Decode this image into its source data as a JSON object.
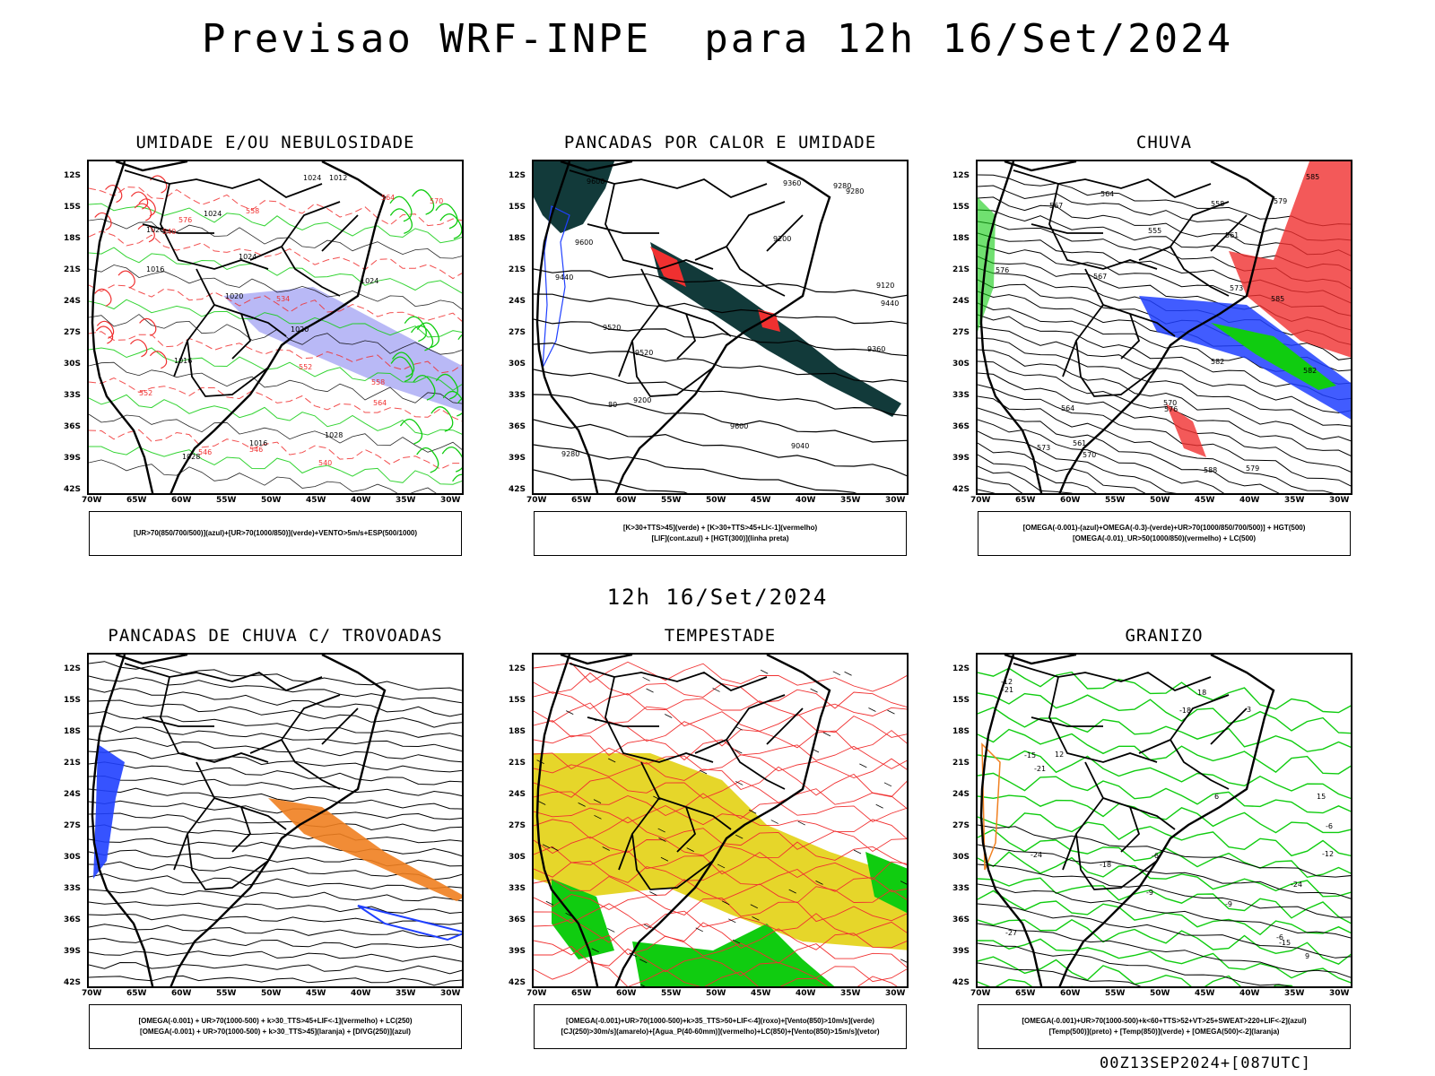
{
  "title": "Previsao WRF-INPE  para 12h 16/Set/2024",
  "mid_title": "12h 16/Set/2024",
  "footer": "00Z13SEP2024+[087UTC]",
  "lat_labels": [
    "12S",
    "15S",
    "18S",
    "21S",
    "24S",
    "27S",
    "30S",
    "33S",
    "36S",
    "39S",
    "42S"
  ],
  "lon_labels": [
    "70W",
    "65W",
    "60W",
    "55W",
    "50W",
    "45W",
    "40W",
    "35W",
    "30W"
  ],
  "colors": {
    "red": "#f03030",
    "green": "#10cc10",
    "blue": "#2040ff",
    "purple": "#8080ee",
    "teal": "#123a3a",
    "yellow": "#e6d62a",
    "orange": "#f08020"
  },
  "panels": [
    {
      "title": "UMIDADE E/OU NEBULOSIDADE",
      "legend": [
        "[UR>70(850/700/500)](azul)+[UR>70(1000/850)](verde)+VENTO>5m/s+ESP(500/1000)"
      ],
      "contour_labels": [
        "1012",
        "1016",
        "1016",
        "1016",
        "1020",
        "1024",
        "1024",
        "1020",
        "1024",
        "1024",
        "1028",
        "1020",
        "1028",
        "576",
        "570",
        "564",
        "558",
        "552",
        "546",
        "540",
        "534",
        "564",
        "558",
        "552",
        "546",
        "540"
      ]
    },
    {
      "title": "PANCADAS POR CALOR E UMIDADE",
      "legend": [
        "[K>30+TTS>45](verde) + [K>30+TTS>45+LI<-1](vermelho)",
        "[LIF](cont.azul) + [HGT(300)](linha preta)"
      ],
      "contour_labels": [
        "9600",
        "9520",
        "9440",
        "9360",
        "9280",
        "9200",
        "9120",
        "9040",
        "9600",
        "9520",
        "9440",
        "9360",
        "9280",
        "9280",
        "9200",
        "9600",
        "80"
      ]
    },
    {
      "title": "CHUVA",
      "legend": [
        "[OMEGA(-0.001)-(azul)+OMEGA(-0.3)-(verde)+UR>70(1000/850/700/500)] + HGT(500)",
        "[OMEGA(-0.01)_UR>50(1000/850)(vermelho) + LC(500)"
      ],
      "contour_labels": [
        "585",
        "582",
        "579",
        "576",
        "573",
        "570",
        "567",
        "564",
        "561",
        "588",
        "585",
        "582",
        "579",
        "576",
        "573",
        "570",
        "567",
        "564",
        "561",
        "558",
        "555"
      ]
    },
    {
      "title": "PANCADAS DE CHUVA C/ TROVOADAS",
      "legend": [
        "[OMEGA(-0.001) + UR>70(1000-500) + k>30_TTS>45+LIF<-1](vermelho) + LC(250)",
        "[OMEGA(-0.001) + UR>70(1000-500) + k>30_TTS>45](laranja) + [DIVG(250)](azul)"
      ],
      "contour_labels": []
    },
    {
      "title": "TEMPESTADE",
      "legend": [
        "[OMEGA(-0.001)+UR>70(1000-500)+k>35_TTS>50+LIF<-4](roxo)+[Vento(850)>10m/s](verde)",
        "[CJ(250)>30m/s](amarelo)+[Agua_P(40-60mm)](vermelho)+LC(850)+[Vento(850)>15m/s](vetor)"
      ],
      "contour_labels": []
    },
    {
      "title": "GRANIZO",
      "legend": [
        "[OMEGA(-0.001)+UR>70(1000-500)+k<60+TTS>52+VT>25+SWEAT>220+LIF<-2](azul)",
        "[Temp(500)](preto) + [Temp(850)](verde) + [OMEGA(500)<-2](laranja)"
      ],
      "contour_labels": [
        "-9",
        "-6",
        "-12",
        "-15",
        "-18",
        "-21",
        "-27",
        "-24",
        "-12",
        "-15",
        "-18",
        "-21",
        "-24",
        "-6",
        "-9",
        "-6",
        "3",
        "6",
        "9",
        "12",
        "15",
        "18"
      ]
    }
  ]
}
